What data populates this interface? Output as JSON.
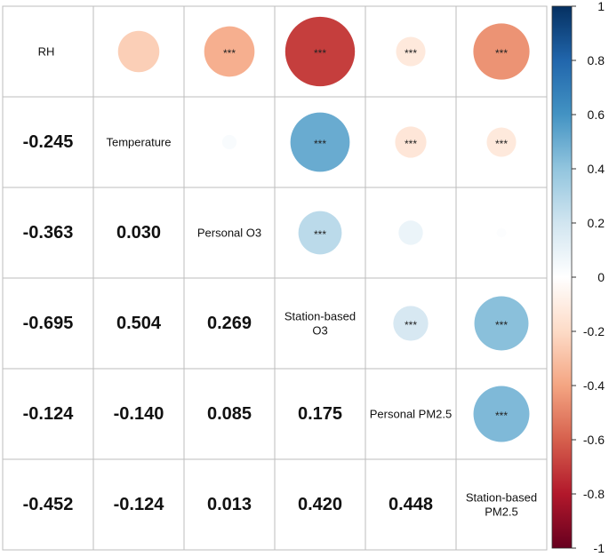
{
  "chart_data": {
    "type": "heatmap",
    "subtype": "correlogram",
    "variables": [
      [
        "RH"
      ],
      [
        "Temperature"
      ],
      [
        "Personal O3"
      ],
      [
        "Station-based",
        "O3"
      ],
      [
        "Personal PM2.5"
      ],
      [
        "Station-based",
        "PM2.5"
      ]
    ],
    "matrix": [
      [
        1.0,
        -0.245,
        -0.363,
        -0.695,
        -0.124,
        -0.452
      ],
      [
        -0.245,
        1.0,
        0.03,
        0.504,
        -0.14,
        -0.124
      ],
      [
        -0.363,
        0.03,
        1.0,
        0.269,
        0.085,
        0.013
      ],
      [
        -0.695,
        0.504,
        0.269,
        1.0,
        0.175,
        0.42
      ],
      [
        -0.124,
        -0.14,
        0.085,
        0.175,
        1.0,
        0.448
      ],
      [
        -0.452,
        -0.124,
        0.013,
        0.42,
        0.448,
        1.0
      ]
    ],
    "lower_labels": [
      [
        "-0.245"
      ],
      [
        "-0.363",
        "0.030"
      ],
      [
        "-0.695",
        "0.504",
        "0.269"
      ],
      [
        "-0.124",
        "-0.140",
        "0.085",
        "0.175"
      ],
      [
        "-0.452",
        "-0.124",
        "0.013",
        "0.420",
        "0.448"
      ]
    ],
    "significance": [
      [
        "",
        "",
        "***",
        "***",
        "***",
        "***"
      ],
      [
        "",
        "",
        "",
        "***",
        "***",
        "***"
      ],
      [
        "",
        "",
        "",
        "***",
        "",
        ""
      ],
      [
        "",
        "",
        "",
        "",
        "***",
        "***"
      ],
      [
        "",
        "",
        "",
        "",
        "",
        "***"
      ],
      [
        "",
        "",
        "",
        "",
        "",
        ""
      ]
    ],
    "upper": "circle",
    "lower": "number",
    "diagonal": "label",
    "colorbar": {
      "range": [
        -1,
        1
      ],
      "ticks": [
        "1",
        "0.8",
        "0.6",
        "0.4",
        "0.2",
        "0",
        "-0.2",
        "-0.4",
        "-0.6",
        "-0.8",
        "-1"
      ],
      "tick_values": [
        1,
        0.8,
        0.6,
        0.4,
        0.2,
        0,
        -0.2,
        -0.4,
        -0.6,
        -0.8,
        -1
      ]
    },
    "palette": [
      "#67001F",
      "#B2182B",
      "#D6604D",
      "#F4A582",
      "#FDDBC7",
      "#FFFFFF",
      "#D1E5F0",
      "#92C5DE",
      "#4393C3",
      "#2166AC",
      "#053061"
    ]
  }
}
